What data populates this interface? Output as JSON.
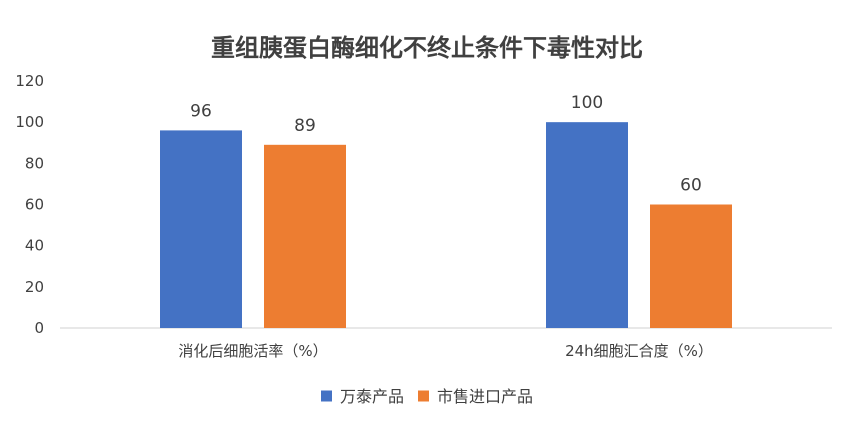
{
  "chart_data": {
    "type": "bar",
    "title": "重组胰蛋白酶细化不终止条件下毒性对比",
    "categories": [
      "消化后细胞活率（%）",
      "24h细胞汇合度（%）"
    ],
    "series": [
      {
        "name": "万泰产品",
        "values": [
          96,
          100
        ],
        "color": "#4472C4"
      },
      {
        "name": "市售进口产品",
        "values": [
          89,
          60
        ],
        "color": "#ED7D31"
      }
    ],
    "ylim": [
      0,
      120
    ],
    "yticks": [
      0,
      20,
      40,
      60,
      80,
      100,
      120
    ],
    "grid": false,
    "legend": "bottom",
    "data_labels": true,
    "axis_color": "#D9D9D9"
  }
}
